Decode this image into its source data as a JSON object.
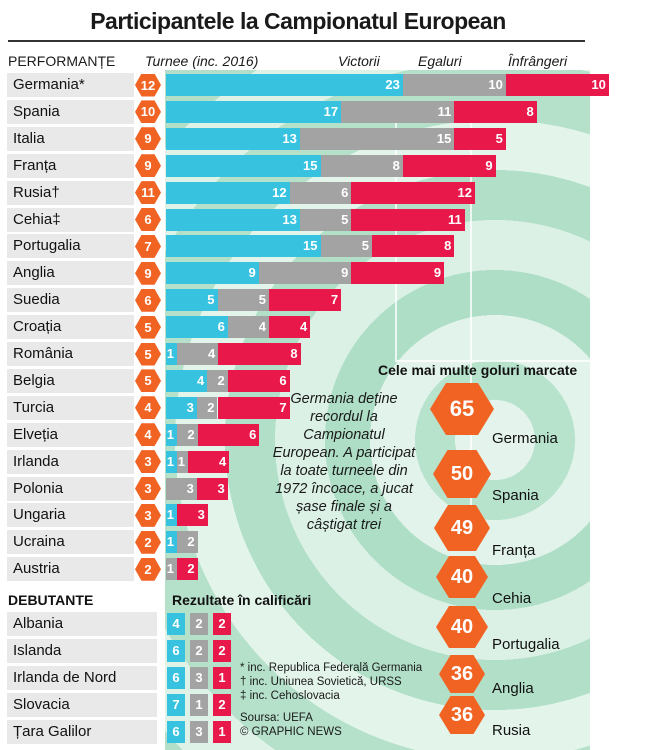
{
  "title": "Participantele la Campionatul European",
  "headers": {
    "performante": "PERFORMANȚE",
    "turnee": "Turnee (inc. 2016)",
    "victorii": "Victorii",
    "egaluri": "Egaluri",
    "infrangeri": "Înfrângeri"
  },
  "colors": {
    "win": "#37c3e0",
    "draw": "#a3a3a3",
    "loss": "#e8194a",
    "tournaments": "#f16322"
  },
  "chart_data": [
    {
      "type": "bar",
      "stacked": true,
      "orientation": "horizontal",
      "categories": [
        "Germania*",
        "Spania",
        "Italia",
        "Franța",
        "Rusia†",
        "Cehia‡",
        "Portugalia",
        "Anglia",
        "Suedia",
        "Croația",
        "România",
        "Belgia",
        "Turcia",
        "Elveția",
        "Irlanda",
        "Polonia",
        "Ungaria",
        "Ucraina",
        "Austria"
      ],
      "tournaments": [
        12,
        10,
        9,
        9,
        11,
        6,
        7,
        9,
        6,
        5,
        5,
        5,
        4,
        4,
        3,
        3,
        3,
        2,
        2
      ],
      "series": [
        {
          "name": "Victorii",
          "values": [
            23,
            17,
            13,
            15,
            12,
            13,
            15,
            9,
            5,
            6,
            1,
            4,
            3,
            1,
            1,
            0,
            1,
            1,
            0
          ]
        },
        {
          "name": "Egaluri",
          "values": [
            10,
            11,
            15,
            8,
            6,
            5,
            5,
            9,
            5,
            4,
            4,
            2,
            2,
            2,
            1,
            3,
            0,
            2,
            1
          ]
        },
        {
          "name": "Înfrângeri",
          "values": [
            10,
            8,
            5,
            9,
            12,
            11,
            8,
            9,
            7,
            4,
            8,
            6,
            7,
            6,
            4,
            3,
            3,
            0,
            2
          ]
        }
      ]
    },
    {
      "type": "table",
      "title": "Rezultate în calificări",
      "section_label": "DEBUTANTE",
      "categories": [
        "Albania",
        "Islanda",
        "Irlanda de Nord",
        "Slovacia",
        "Țara Galilor"
      ],
      "series": [
        {
          "name": "Victorii",
          "values": [
            4,
            6,
            6,
            7,
            6
          ]
        },
        {
          "name": "Egaluri",
          "values": [
            2,
            2,
            3,
            1,
            3
          ]
        },
        {
          "name": "Înfrângeri",
          "values": [
            2,
            2,
            1,
            2,
            1
          ]
        }
      ]
    },
    {
      "type": "table",
      "title": "Cele mai multe goluri marcate",
      "categories": [
        "Germania",
        "Spania",
        "Franța",
        "Cehia",
        "Portugalia",
        "Anglia",
        "Rusia"
      ],
      "values": [
        65,
        50,
        49,
        40,
        40,
        36,
        36
      ]
    }
  ],
  "note": "Germania deține recordul la Campionatul European. A participat la toate turneele din 1972 încoace, a jucat șase finale și a câștigat trei",
  "footnotes": [
    "* inc. Republica Federală Germania",
    "† inc. Uniunea Sovietică, URSS",
    "‡ inc. Cehoslovacia"
  ],
  "source": "Soursa: UEFA",
  "credit": "© GRAPHIC NEWS"
}
